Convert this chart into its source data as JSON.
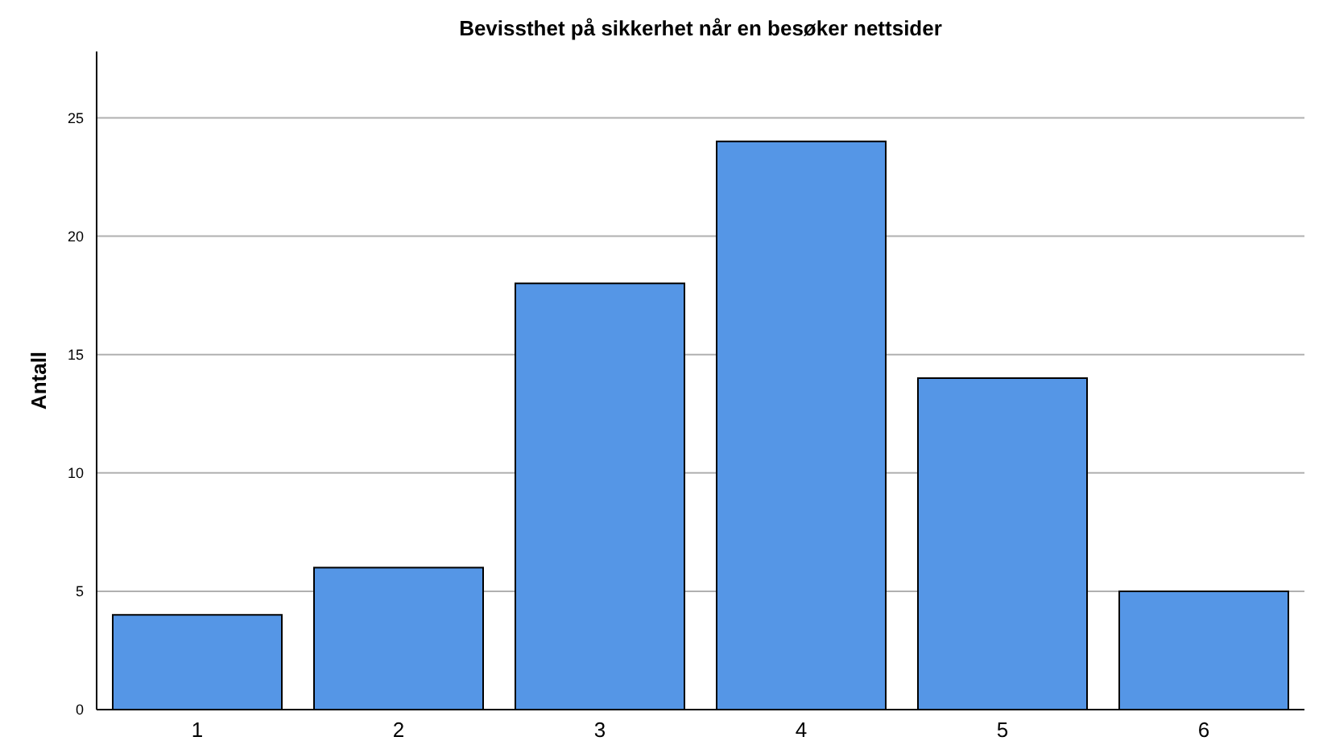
{
  "chart_data": {
    "type": "bar",
    "title": "Bevissthet på sikkerhet når en besøker nettsider",
    "ylabel": "Antall",
    "categories": [
      "1",
      "2",
      "3",
      "4",
      "5",
      "6"
    ],
    "values": [
      4,
      6,
      18,
      24,
      14,
      5
    ],
    "color": "#5596e6",
    "ylim": [
      0,
      27.8
    ],
    "yticks": [
      0,
      5,
      10,
      15,
      20,
      25
    ],
    "grid": "y"
  }
}
